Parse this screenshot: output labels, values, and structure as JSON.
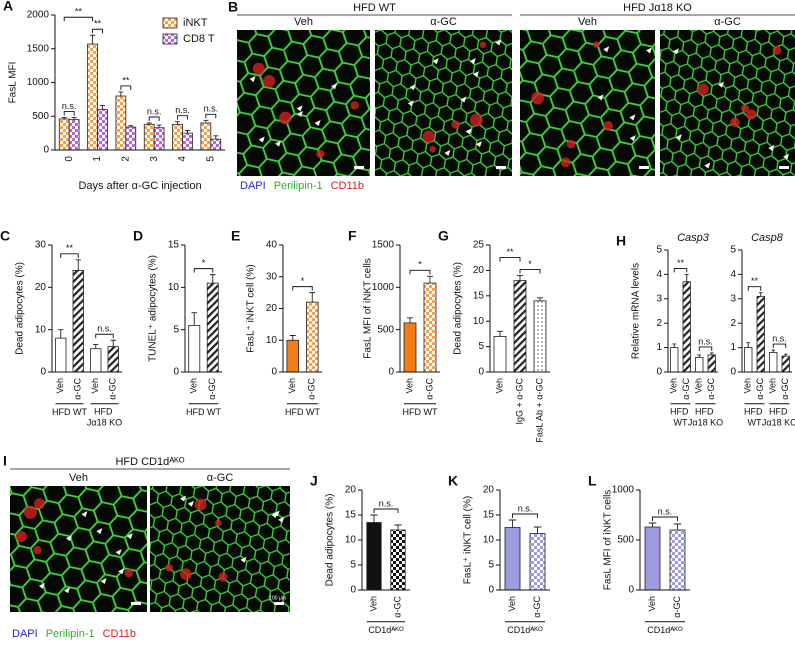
{
  "figure_images": [
    {
      "panel": "B",
      "groups": [
        {
          "title": "HFD WT",
          "columns": [
            "Veh",
            "α-GC"
          ]
        },
        {
          "title": "HFD Jα18 KO",
          "columns": [
            "Veh",
            "α-GC"
          ]
        }
      ],
      "stains": [
        {
          "name": "DAPI",
          "color": "#2323d8"
        },
        {
          "name": "Perilipin-1",
          "color": "#2faa2f"
        },
        {
          "name": "CD11b",
          "color": "#e02020"
        }
      ]
    },
    {
      "panel": "I",
      "groups": [
        {
          "title": "HFD CD1dᴬᴷᴼ",
          "columns": [
            "Veh",
            "α-GC"
          ]
        }
      ],
      "stains": [
        {
          "name": "DAPI",
          "color": "#2323d8"
        },
        {
          "name": "Perilipin-1",
          "color": "#2faa2f"
        },
        {
          "name": "CD11b",
          "color": "#e02020"
        }
      ],
      "scale_label": "100 μm"
    }
  ],
  "chart_data": [
    {
      "type": "bar",
      "panel": "A",
      "ylabel": "FasL MFI",
      "xlabel": "Days after α-GC injection",
      "categories": [
        "0",
        "1",
        "2",
        "3",
        "4",
        "5"
      ],
      "series": [
        {
          "name": "iNKT",
          "color": "#f4a24f",
          "pattern": "check",
          "values": [
            460,
            1570,
            800,
            380,
            380,
            400
          ],
          "errors": [
            20,
            130,
            60,
            20,
            40,
            40
          ]
        },
        {
          "name": "CD8 T",
          "color": "#b36bd6",
          "pattern": "check",
          "values": [
            450,
            600,
            340,
            330,
            250,
            160
          ],
          "errors": [
            30,
            60,
            20,
            40,
            40,
            50
          ]
        }
      ],
      "ylim": [
        0,
        2000
      ],
      "yticks": [
        0,
        500,
        1000,
        1500,
        2000
      ],
      "legend": "top-right",
      "annotations": [
        "**",
        "n.s.",
        "**",
        "**",
        "n.s.",
        "n.s.",
        "n.s."
      ]
    },
    {
      "type": "bar",
      "panel": "C",
      "ylabel": "Dead adipocytes (%)",
      "categories": [
        "Veh",
        "α-GC",
        "Veh",
        "α-GC"
      ],
      "values": [
        8,
        24,
        5.5,
        6
      ],
      "errors": [
        2,
        2.5,
        1,
        1.5
      ],
      "colors": [
        "#ffffff",
        "#222222",
        "#ffffff",
        "#222222"
      ],
      "patterns": [
        "none",
        "hatch",
        "none",
        "hatch"
      ],
      "groups": [
        "HFD WT",
        "HFD Jα18 KO"
      ],
      "ylim": [
        0,
        30
      ],
      "yticks": [
        0,
        10,
        20,
        30
      ],
      "annotations": [
        "**",
        "n.s."
      ]
    },
    {
      "type": "bar",
      "panel": "D",
      "ylabel": "TUNEL⁺ adipocytes (%)",
      "categories": [
        "Veh",
        "α-GC"
      ],
      "values": [
        5.5,
        10.5
      ],
      "errors": [
        1.5,
        1
      ],
      "colors": [
        "#ffffff",
        "#222222"
      ],
      "patterns": [
        "none",
        "hatch"
      ],
      "groups": [
        "HFD WT"
      ],
      "ylim": [
        0,
        15
      ],
      "yticks": [
        0,
        5,
        10,
        15
      ],
      "annotations": [
        "*"
      ]
    },
    {
      "type": "bar",
      "panel": "E",
      "ylabel": "FasL⁺ iNKT cell (%)",
      "categories": [
        "Veh",
        "α-GC"
      ],
      "values": [
        10,
        22
      ],
      "errors": [
        1.5,
        3
      ],
      "colors": [
        "#f07f1a",
        "#f4a24f"
      ],
      "patterns": [
        "solid",
        "check"
      ],
      "groups": [
        "HFD WT"
      ],
      "ylim": [
        0,
        40
      ],
      "yticks": [
        0,
        10,
        20,
        30,
        40
      ],
      "annotations": [
        "*"
      ]
    },
    {
      "type": "bar",
      "panel": "F",
      "ylabel": "FasL MFI of iNKT cells",
      "categories": [
        "Veh",
        "α-GC"
      ],
      "values": [
        580,
        1050
      ],
      "errors": [
        60,
        80
      ],
      "colors": [
        "#f07f1a",
        "#f4a24f"
      ],
      "patterns": [
        "solid",
        "check"
      ],
      "groups": [
        "HFD WT"
      ],
      "ylim": [
        0,
        1500
      ],
      "yticks": [
        0,
        500,
        1000,
        1500
      ],
      "annotations": [
        "*"
      ]
    },
    {
      "type": "bar",
      "panel": "G",
      "ylabel": "Dead adipocytes (%)",
      "categories": [
        "Veh",
        "IgG + α-GC",
        "FasL Ab + α-GC"
      ],
      "values": [
        7,
        18,
        14
      ],
      "errors": [
        1,
        1,
        0.6
      ],
      "colors": [
        "#ffffff",
        "#222222",
        "#444444"
      ],
      "patterns": [
        "none",
        "hatch",
        "dots"
      ],
      "ylim": [
        0,
        25
      ],
      "yticks": [
        0,
        5,
        10,
        15,
        20,
        25
      ],
      "annotations": [
        "**",
        "*"
      ]
    },
    {
      "type": "bar",
      "panel": "H",
      "title": "Casp3",
      "ylabel": "Relative mRNA levels",
      "categories": [
        "Veh",
        "α-GC",
        "Veh",
        "α-GC"
      ],
      "values": [
        1,
        3.7,
        0.6,
        0.7
      ],
      "errors": [
        0.15,
        0.3,
        0.1,
        0.08
      ],
      "colors": [
        "#ffffff",
        "#222222",
        "#ffffff",
        "#222222"
      ],
      "patterns": [
        "none",
        "hatch",
        "none",
        "hatch"
      ],
      "groups": [
        "HFD WT",
        "HFD Jα18 KO"
      ],
      "ylim": [
        0,
        5
      ],
      "yticks": [
        0,
        1,
        2,
        3,
        4,
        5
      ],
      "annotations": [
        "**",
        "n.s."
      ]
    },
    {
      "type": "bar",
      "title": "Casp8",
      "categories": [
        "Veh",
        "α-GC",
        "Veh",
        "α-GC"
      ],
      "values": [
        1,
        3.1,
        0.8,
        0.65
      ],
      "errors": [
        0.2,
        0.15,
        0.1,
        0.08
      ],
      "colors": [
        "#ffffff",
        "#222222",
        "#ffffff",
        "#222222"
      ],
      "patterns": [
        "none",
        "hatch",
        "none",
        "hatch"
      ],
      "groups": [
        "HFD WT",
        "HFD Jα18 KO"
      ],
      "ylim": [
        0,
        5
      ],
      "yticks": [
        0,
        1,
        2,
        3,
        4,
        5
      ],
      "annotations": [
        "**",
        "n.s."
      ]
    },
    {
      "type": "bar",
      "panel": "J",
      "ylabel": "Dead adipocytes (%)",
      "categories": [
        "Veh",
        "α-GC"
      ],
      "values": [
        13.5,
        12
      ],
      "errors": [
        1.5,
        1
      ],
      "colors": [
        "#111111",
        "#111111"
      ],
      "patterns": [
        "solid",
        "check"
      ],
      "groups": [
        "CD1dᴬᴷᴼ"
      ],
      "ylim": [
        0,
        20
      ],
      "yticks": [
        0,
        5,
        10,
        15,
        20
      ],
      "annotations": [
        "n.s."
      ]
    },
    {
      "type": "bar",
      "panel": "K",
      "ylabel": "FasL⁺ iNKT cell (%)",
      "categories": [
        "Veh",
        "α-GC"
      ],
      "values": [
        12.5,
        11.3
      ],
      "errors": [
        1.5,
        1.3
      ],
      "colors": [
        "#9e9be0",
        "#9e9be0"
      ],
      "patterns": [
        "solid",
        "check"
      ],
      "groups": [
        "CD1dᴬᴷᴼ"
      ],
      "ylim": [
        0,
        20
      ],
      "yticks": [
        0,
        5,
        10,
        15,
        20
      ],
      "annotations": [
        "n.s."
      ]
    },
    {
      "type": "bar",
      "panel": "L",
      "ylabel": "FasL MFI of iNKT cells",
      "categories": [
        "Veh",
        "α-GC"
      ],
      "values": [
        630,
        600
      ],
      "errors": [
        40,
        60
      ],
      "colors": [
        "#9e9be0",
        "#9e9be0"
      ],
      "patterns": [
        "solid",
        "check"
      ],
      "groups": [
        "CD1dᴬᴷᴼ"
      ],
      "ylim": [
        0,
        1000
      ],
      "yticks": [
        0,
        500,
        1000
      ],
      "annotations": [
        "n.s."
      ]
    }
  ]
}
